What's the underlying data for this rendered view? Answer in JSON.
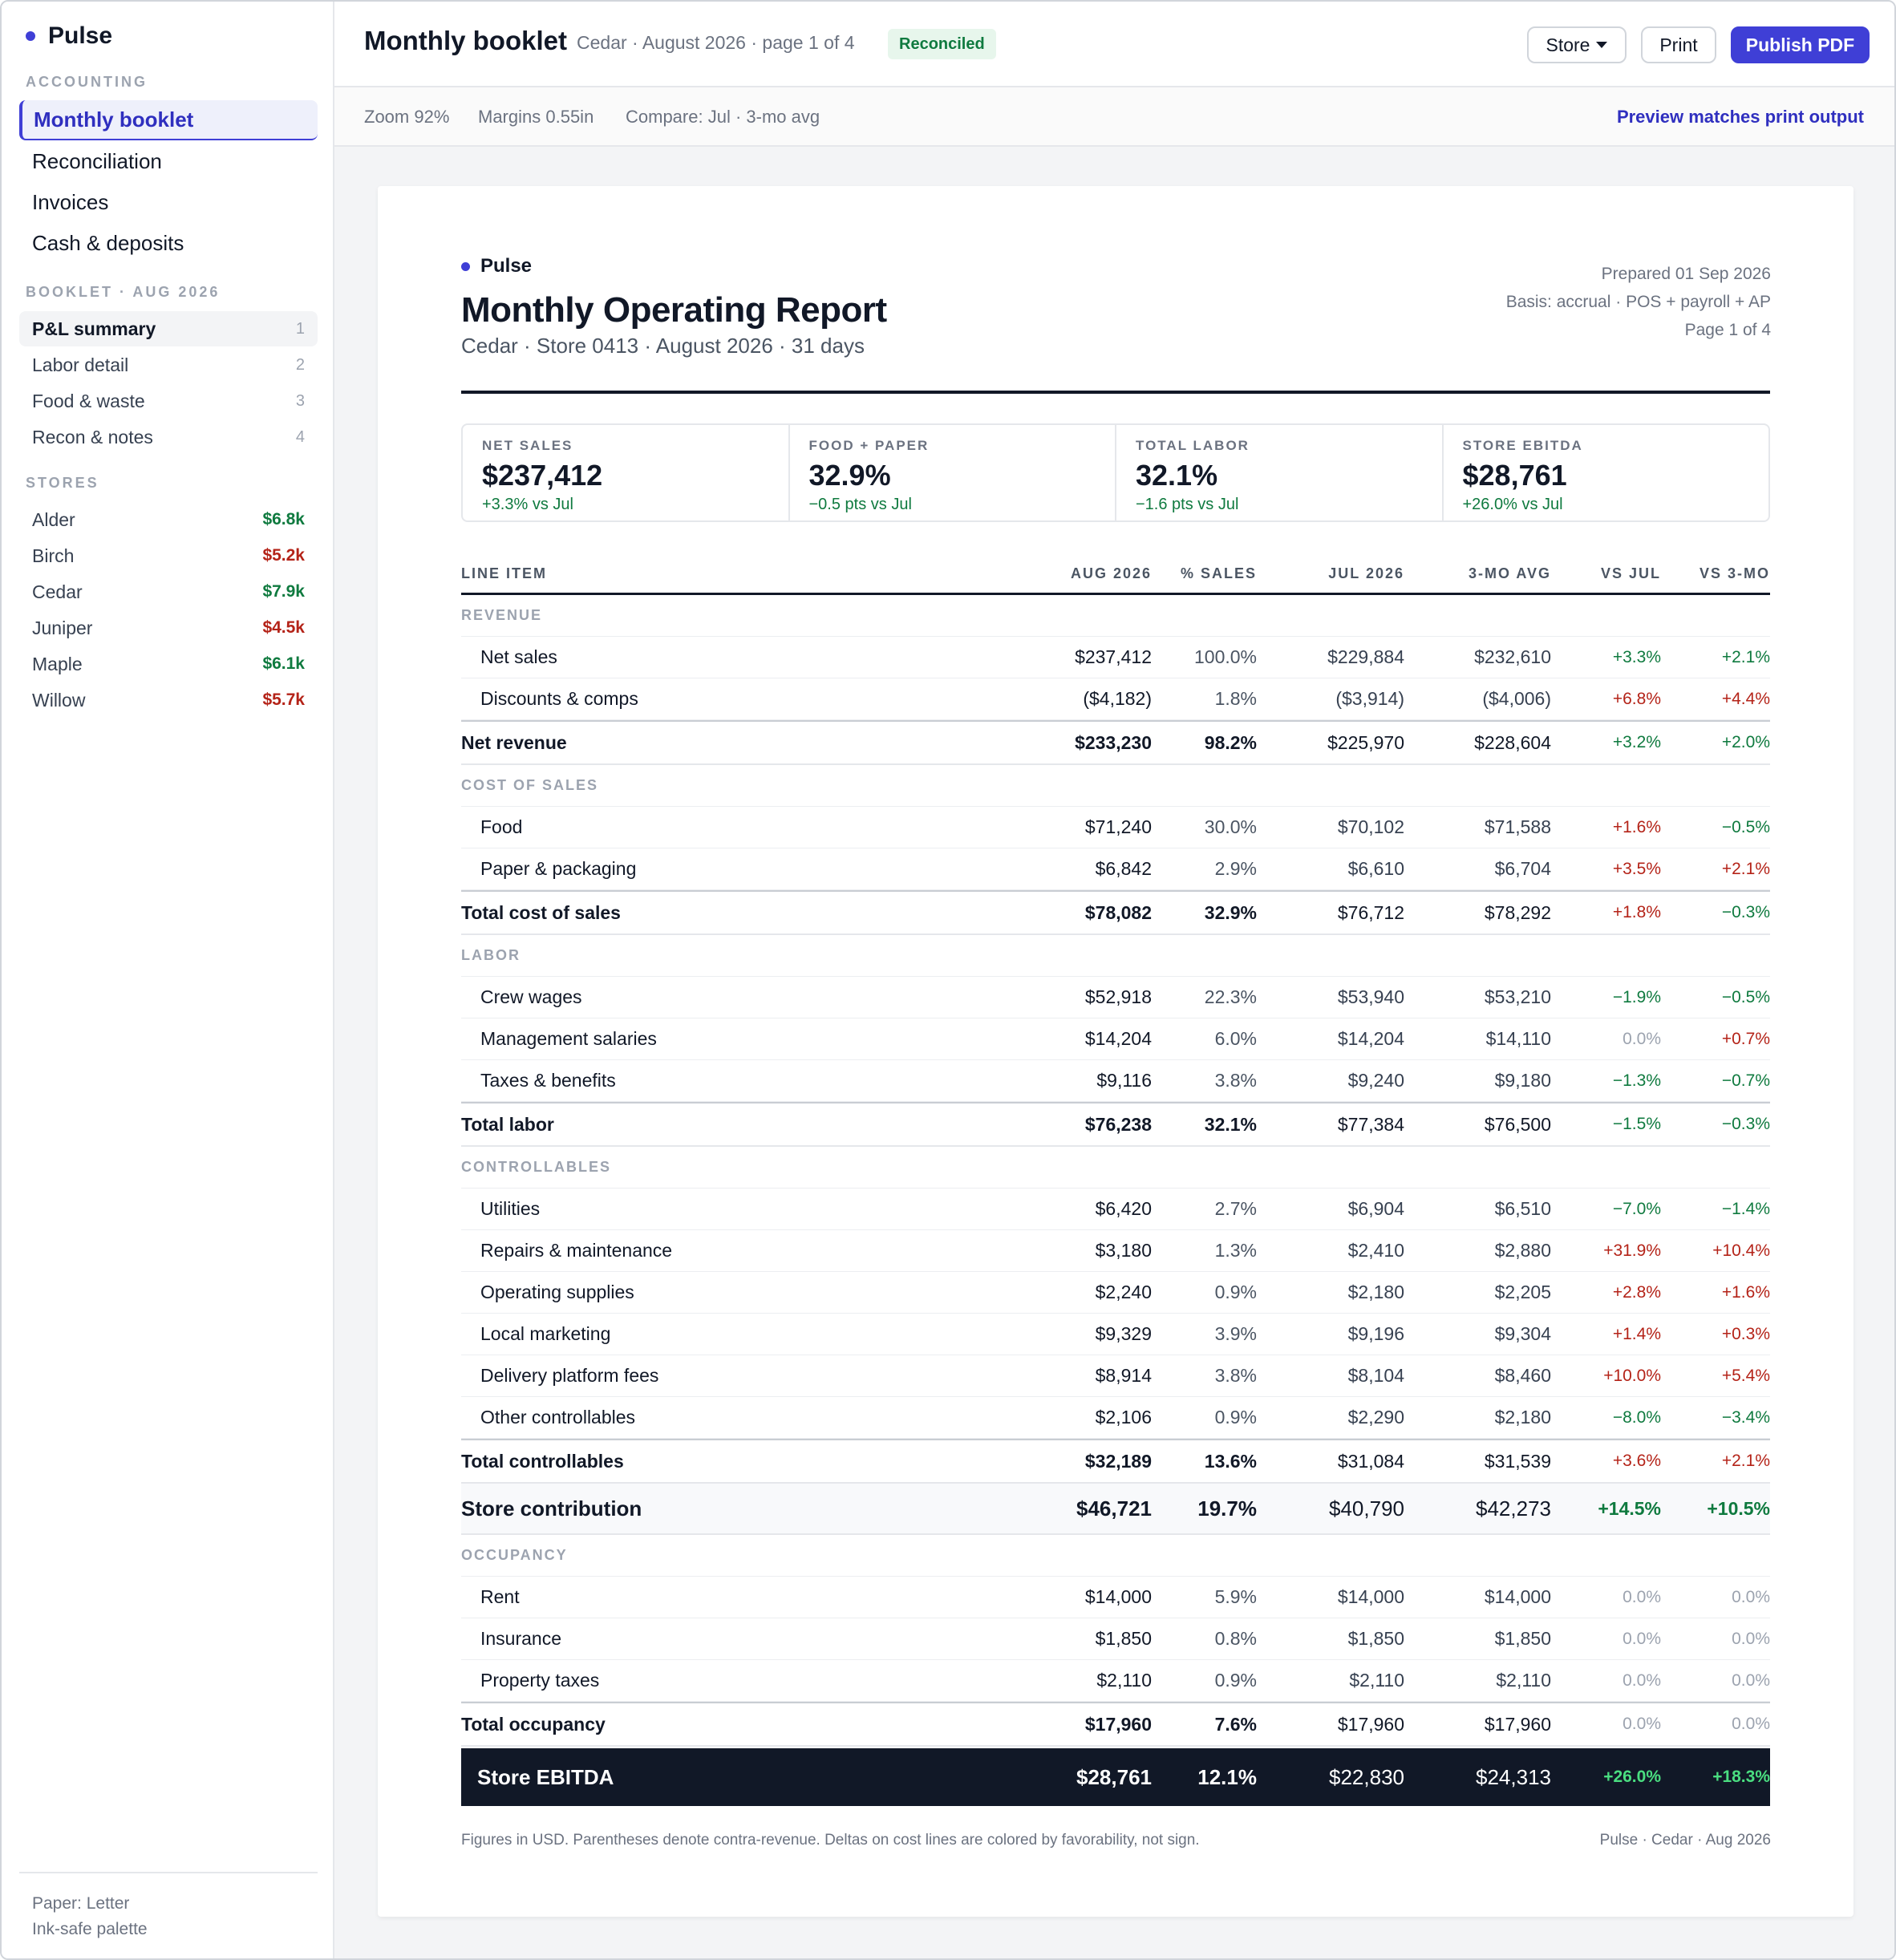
{
  "app": {
    "name": "Pulse"
  },
  "sidebar": {
    "accounting_label": "ACCOUNTING",
    "nav": [
      {
        "label": "Monthly booklet",
        "active": true
      },
      {
        "label": "Reconciliation",
        "active": false
      },
      {
        "label": "Invoices",
        "active": false
      },
      {
        "label": "Cash & deposits",
        "active": false
      }
    ],
    "booklet_label": "BOOKLET · AUG 2026",
    "booklet": [
      {
        "label": "P&L summary",
        "num": "1",
        "active": true
      },
      {
        "label": "Labor detail",
        "num": "2",
        "active": false
      },
      {
        "label": "Food & waste",
        "num": "3",
        "active": false
      },
      {
        "label": "Recon & notes",
        "num": "4",
        "active": false
      }
    ],
    "stores_label": "STORES",
    "stores": [
      {
        "name": "Alder",
        "value": "$6.8k",
        "tone": "pos"
      },
      {
        "name": "Birch",
        "value": "$5.2k",
        "tone": "neg"
      },
      {
        "name": "Cedar",
        "value": "$7.9k",
        "tone": "pos"
      },
      {
        "name": "Juniper",
        "value": "$4.5k",
        "tone": "neg"
      },
      {
        "name": "Maple",
        "value": "$6.1k",
        "tone": "pos"
      },
      {
        "name": "Willow",
        "value": "$5.7k",
        "tone": "neg"
      }
    ],
    "footer": {
      "paper": "Paper: Letter",
      "palette": "Ink-safe palette"
    }
  },
  "topbar": {
    "title": "Monthly booklet",
    "meta": "Cedar · August 2026 · page 1 of 4",
    "status": "Reconciled",
    "store_button": "Store",
    "print_button": "Print",
    "publish_button": "Publish PDF"
  },
  "subbar": {
    "zoom": "Zoom 92%",
    "margins": "Margins 0.55in",
    "compare": "Compare: Jul · 3-mo avg",
    "preview": "Preview matches print output"
  },
  "report": {
    "brand": "Pulse",
    "title": "Monthly Operating Report",
    "subtitle": "Cedar · Store 0413 · August 2026 · 31 days",
    "prepared": "Prepared 01 Sep 2026",
    "basis": "Basis: accrual · POS + payroll + AP",
    "page": "Page 1 of 4",
    "kpis": [
      {
        "label": "NET SALES",
        "value": "$237,412",
        "delta": "+3.3% vs Jul"
      },
      {
        "label": "FOOD + PAPER",
        "value": "32.9%",
        "delta": "−0.5 pts vs Jul"
      },
      {
        "label": "TOTAL LABOR",
        "value": "32.1%",
        "delta": "−1.6 pts vs Jul"
      },
      {
        "label": "STORE EBITDA",
        "value": "$28,761",
        "delta": "+26.0% vs Jul"
      }
    ],
    "columns": {
      "item": "LINE ITEM",
      "aug": "AUG 2026",
      "pct": "% SALES",
      "jul": "JUL 2026",
      "avg": "3-MO AVG",
      "vj": "VS JUL",
      "v3": "VS 3-MO"
    },
    "rows": [
      {
        "kind": "section",
        "label": "REVENUE"
      },
      {
        "kind": "line",
        "label": "Net sales",
        "aug": "$237,412",
        "pct": "100.0%",
        "jul": "$229,884",
        "avg": "$232,610",
        "vj": "+3.3%",
        "vjt": "pos",
        "v3": "+2.1%",
        "v3t": "pos"
      },
      {
        "kind": "line",
        "label": "Discounts & comps",
        "aug": "($4,182)",
        "pct": "1.8%",
        "jul": "($3,914)",
        "avg": "($4,006)",
        "vj": "+6.8%",
        "vjt": "neg",
        "v3": "+4.4%",
        "v3t": "neg"
      },
      {
        "kind": "total",
        "label": "Net revenue",
        "aug": "$233,230",
        "pct": "98.2%",
        "jul": "$225,970",
        "avg": "$228,604",
        "vj": "+3.2%",
        "vjt": "pos",
        "v3": "+2.0%",
        "v3t": "pos"
      },
      {
        "kind": "section",
        "label": "COST OF SALES"
      },
      {
        "kind": "line",
        "label": "Food",
        "aug": "$71,240",
        "pct": "30.0%",
        "jul": "$70,102",
        "avg": "$71,588",
        "vj": "+1.6%",
        "vjt": "neg",
        "v3": "−0.5%",
        "v3t": "pos"
      },
      {
        "kind": "line",
        "label": "Paper & packaging",
        "aug": "$6,842",
        "pct": "2.9%",
        "jul": "$6,610",
        "avg": "$6,704",
        "vj": "+3.5%",
        "vjt": "neg",
        "v3": "+2.1%",
        "v3t": "neg"
      },
      {
        "kind": "total",
        "label": "Total cost of sales",
        "aug": "$78,082",
        "pct": "32.9%",
        "jul": "$76,712",
        "avg": "$78,292",
        "vj": "+1.8%",
        "vjt": "neg",
        "v3": "−0.3%",
        "v3t": "pos"
      },
      {
        "kind": "section",
        "label": "LABOR"
      },
      {
        "kind": "line",
        "label": "Crew wages",
        "aug": "$52,918",
        "pct": "22.3%",
        "jul": "$53,940",
        "avg": "$53,210",
        "vj": "−1.9%",
        "vjt": "pos",
        "v3": "−0.5%",
        "v3t": "pos"
      },
      {
        "kind": "line",
        "label": "Management salaries",
        "aug": "$14,204",
        "pct": "6.0%",
        "jul": "$14,204",
        "avg": "$14,110",
        "vj": "0.0%",
        "vjt": "neu",
        "v3": "+0.7%",
        "v3t": "neg"
      },
      {
        "kind": "line",
        "label": "Taxes & benefits",
        "aug": "$9,116",
        "pct": "3.8%",
        "jul": "$9,240",
        "avg": "$9,180",
        "vj": "−1.3%",
        "vjt": "pos",
        "v3": "−0.7%",
        "v3t": "pos"
      },
      {
        "kind": "total",
        "label": "Total labor",
        "aug": "$76,238",
        "pct": "32.1%",
        "jul": "$77,384",
        "avg": "$76,500",
        "vj": "−1.5%",
        "vjt": "pos",
        "v3": "−0.3%",
        "v3t": "pos"
      },
      {
        "kind": "section",
        "label": "CONTROLLABLES"
      },
      {
        "kind": "line",
        "label": "Utilities",
        "aug": "$6,420",
        "pct": "2.7%",
        "jul": "$6,904",
        "avg": "$6,510",
        "vj": "−7.0%",
        "vjt": "pos",
        "v3": "−1.4%",
        "v3t": "pos"
      },
      {
        "kind": "line",
        "label": "Repairs & maintenance",
        "aug": "$3,180",
        "pct": "1.3%",
        "jul": "$2,410",
        "avg": "$2,880",
        "vj": "+31.9%",
        "vjt": "neg",
        "v3": "+10.4%",
        "v3t": "neg"
      },
      {
        "kind": "line",
        "label": "Operating supplies",
        "aug": "$2,240",
        "pct": "0.9%",
        "jul": "$2,180",
        "avg": "$2,205",
        "vj": "+2.8%",
        "vjt": "neg",
        "v3": "+1.6%",
        "v3t": "neg"
      },
      {
        "kind": "line",
        "label": "Local marketing",
        "aug": "$9,329",
        "pct": "3.9%",
        "jul": "$9,196",
        "avg": "$9,304",
        "vj": "+1.4%",
        "vjt": "neg",
        "v3": "+0.3%",
        "v3t": "neg"
      },
      {
        "kind": "line",
        "label": "Delivery platform fees",
        "aug": "$8,914",
        "pct": "3.8%",
        "jul": "$8,104",
        "avg": "$8,460",
        "vj": "+10.0%",
        "vjt": "neg",
        "v3": "+5.4%",
        "v3t": "neg"
      },
      {
        "kind": "line",
        "label": "Other controllables",
        "aug": "$2,106",
        "pct": "0.9%",
        "jul": "$2,290",
        "avg": "$2,180",
        "vj": "−8.0%",
        "vjt": "pos",
        "v3": "−3.4%",
        "v3t": "pos"
      },
      {
        "kind": "total",
        "label": "Total controllables",
        "aug": "$32,189",
        "pct": "13.6%",
        "jul": "$31,084",
        "avg": "$31,539",
        "vj": "+3.6%",
        "vjt": "neg",
        "v3": "+2.1%",
        "v3t": "neg"
      },
      {
        "kind": "contrib",
        "label": "Store contribution",
        "aug": "$46,721",
        "pct": "19.7%",
        "jul": "$40,790",
        "avg": "$42,273",
        "vj": "+14.5%",
        "vjt": "pos",
        "v3": "+10.5%",
        "v3t": "pos"
      },
      {
        "kind": "section",
        "label": "OCCUPANCY"
      },
      {
        "kind": "line",
        "label": "Rent",
        "aug": "$14,000",
        "pct": "5.9%",
        "jul": "$14,000",
        "avg": "$14,000",
        "vj": "0.0%",
        "vjt": "neu",
        "v3": "0.0%",
        "v3t": "neu"
      },
      {
        "kind": "line",
        "label": "Insurance",
        "aug": "$1,850",
        "pct": "0.8%",
        "jul": "$1,850",
        "avg": "$1,850",
        "vj": "0.0%",
        "vjt": "neu",
        "v3": "0.0%",
        "v3t": "neu"
      },
      {
        "kind": "line",
        "label": "Property taxes",
        "aug": "$2,110",
        "pct": "0.9%",
        "jul": "$2,110",
        "avg": "$2,110",
        "vj": "0.0%",
        "vjt": "neu",
        "v3": "0.0%",
        "v3t": "neu"
      },
      {
        "kind": "total",
        "label": "Total occupancy",
        "aug": "$17,960",
        "pct": "7.6%",
        "jul": "$17,960",
        "avg": "$17,960",
        "vj": "0.0%",
        "vjt": "neu",
        "v3": "0.0%",
        "v3t": "neu"
      },
      {
        "kind": "ebitda",
        "label": "Store EBITDA",
        "aug": "$28,761",
        "pct": "12.1%",
        "jul": "$22,830",
        "avg": "$24,313",
        "vj": "+26.0%",
        "vjt": "pos",
        "v3": "+18.3%",
        "v3t": "pos"
      }
    ],
    "footnote": "Figures in USD. Parentheses denote contra-revenue. Deltas on cost lines are colored by favorability, not sign.",
    "footer_right": "Pulse · Cedar · Aug 2026"
  },
  "colors": {
    "accent": "#3f3fd6",
    "positive": "#0f7a3f",
    "negative": "#b42318",
    "ink": "#111827"
  }
}
